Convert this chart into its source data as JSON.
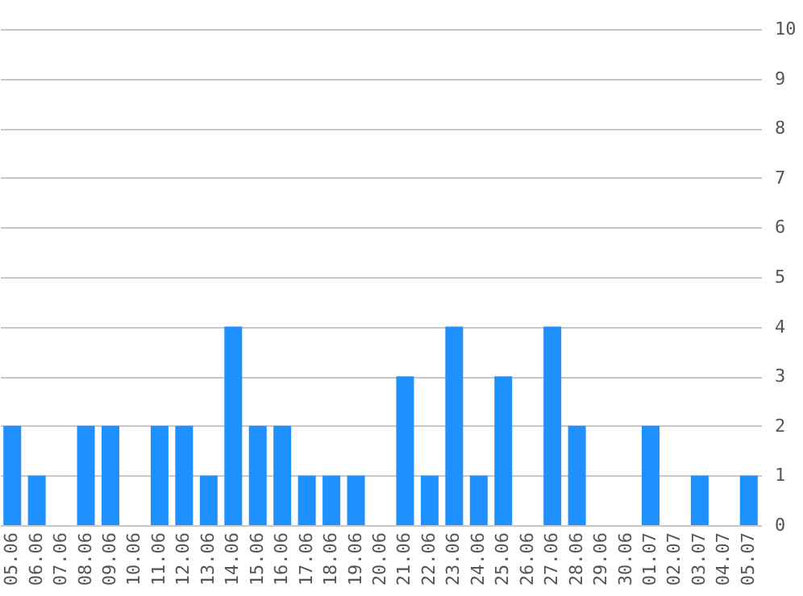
{
  "chart_data": {
    "type": "bar",
    "categories": [
      "05.06",
      "06.06",
      "07.06",
      "08.06",
      "09.06",
      "10.06",
      "11.06",
      "12.06",
      "13.06",
      "14.06",
      "15.06",
      "16.06",
      "17.06",
      "18.06",
      "19.06",
      "20.06",
      "21.06",
      "22.06",
      "23.06",
      "24.06",
      "25.06",
      "26.06",
      "27.06",
      "28.06",
      "29.06",
      "30.06",
      "01.07",
      "02.07",
      "03.07",
      "04.07",
      "05.07"
    ],
    "values": [
      2,
      1,
      0,
      2,
      2,
      0,
      2,
      2,
      1,
      4,
      2,
      2,
      1,
      1,
      1,
      0,
      3,
      1,
      4,
      1,
      3,
      0,
      4,
      2,
      0,
      0,
      2,
      0,
      1,
      0,
      1
    ],
    "color": "#1e90ff",
    "ylim": [
      0,
      10
    ],
    "yticks": [
      0,
      1,
      2,
      3,
      4,
      5,
      6,
      7,
      8,
      9,
      10
    ],
    "grid": "y"
  }
}
